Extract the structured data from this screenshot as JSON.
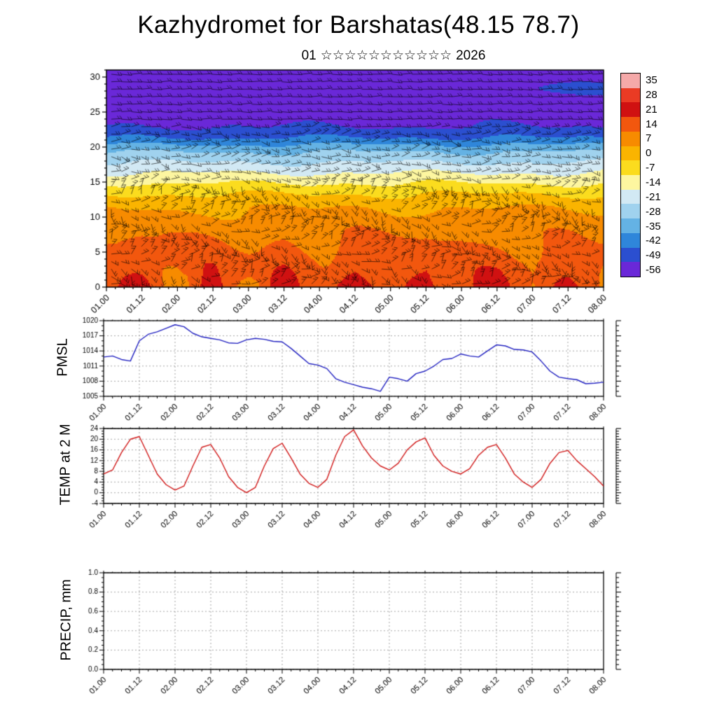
{
  "page": {
    "title": "Kazhydromet for Barshatas(48.15 78.7)",
    "subtitle_prefix": "01",
    "subtitle_stars": "☆☆☆☆☆☆☆☆☆☆☆",
    "subtitle_suffix": "2026"
  },
  "time_axis": {
    "tick_labels": [
      "01.00",
      "01.12",
      "02.00",
      "02.12",
      "03.00",
      "03.12",
      "04.00",
      "04.12",
      "05.00",
      "05.12",
      "06.00",
      "06.12",
      "07.00",
      "07.12",
      "08.00"
    ]
  },
  "chart_data": [
    {
      "id": "temperature_height_cross_section",
      "type": "heatmap",
      "description": "Time-height temperature cross-section with dense black wind barbs; warm (red/orange) near surface with diurnal warm plumes, cold (blue/purple) aloft",
      "ylim": [
        0,
        31
      ],
      "yticks": [
        "0",
        "5",
        "10",
        "15",
        "20",
        "25",
        "30"
      ],
      "colorbar": {
        "ticks": [
          "35",
          "28",
          "21",
          "14",
          "7",
          "0",
          "-7",
          "-14",
          "-21",
          "-28",
          "-35",
          "-42",
          "-49",
          "-56"
        ],
        "colors": [
          "#f5a9a9",
          "#ea3b24",
          "#d01111",
          "#f2570e",
          "#f78b00",
          "#fab400",
          "#fbdc1e",
          "#fdf6a0",
          "#d2e9f4",
          "#a0d2ee",
          "#64b2e4",
          "#2f86da",
          "#2b4fd0",
          "#6a28d8"
        ]
      },
      "temp_profile": {
        "heights": [
          0,
          3.5,
          8,
          11.5,
          13.5,
          15,
          16.5,
          18,
          19.5,
          20.5,
          21.5,
          23,
          25,
          31
        ],
        "temps": [
          16.5,
          14,
          9,
          3,
          -4,
          -11,
          -18,
          -25,
          -32,
          -39,
          -46,
          -52.5,
          -55,
          -57
        ]
      },
      "surface_anomaly_amplitude": 9,
      "wind_barbs": "dense black wind barbs covering entire section, near-horizontal aloft"
    },
    {
      "id": "pmsl",
      "type": "line",
      "label": "PMSL",
      "color": "#2020c0",
      "ylim": [
        1005,
        1020
      ],
      "yticks": [
        "1005",
        "1008",
        "1011",
        "1014",
        "1017",
        "1020"
      ],
      "x_start_day": 1,
      "x_step_days": 0.125,
      "values": [
        1012.8,
        1013,
        1012.3,
        1012,
        1016,
        1017.3,
        1017.8,
        1018.5,
        1019.2,
        1018.8,
        1017.5,
        1016.8,
        1016.5,
        1016.2,
        1015.6,
        1015.5,
        1016.2,
        1016.5,
        1016.3,
        1015.9,
        1015.8,
        1014.5,
        1013,
        1011.5,
        1011.2,
        1010.5,
        1008.5,
        1007.8,
        1007.3,
        1006.8,
        1006.5,
        1006,
        1008.8,
        1008.5,
        1008,
        1009.5,
        1010,
        1011,
        1012.3,
        1012.5,
        1013.4,
        1013,
        1012.8,
        1014,
        1015.2,
        1015,
        1014.3,
        1014.2,
        1013.8,
        1012,
        1010,
        1008.8,
        1008.5,
        1008.3,
        1007.5,
        1007.6,
        1007.8
      ]
    },
    {
      "id": "temp_2m",
      "type": "line",
      "label": "TEMP at 2 M",
      "color": "#d01818",
      "ylim": [
        -4,
        24
      ],
      "yticks": [
        "-4",
        "0",
        "4",
        "8",
        "12",
        "16",
        "20",
        "24"
      ],
      "x_start_day": 1,
      "x_step_days": 0.125,
      "values": [
        7,
        8.5,
        15,
        20,
        21,
        14,
        7,
        3,
        1,
        2.5,
        10,
        17,
        18,
        13,
        6,
        2,
        0,
        2,
        10,
        16.5,
        18.5,
        13,
        7,
        3.5,
        2,
        5,
        14,
        21,
        23.5,
        17.5,
        13,
        10,
        8.5,
        11,
        16,
        19,
        20.5,
        14,
        10,
        8,
        7,
        9,
        14,
        17,
        18,
        13,
        7,
        4,
        2,
        5,
        11,
        15,
        15.8,
        12,
        9,
        6,
        2.5
      ]
    },
    {
      "id": "precip",
      "type": "line",
      "label": "PRECIP, mm",
      "color": "#000000",
      "ylim": [
        0,
        1
      ],
      "yticks": [
        "0.0",
        "0.2",
        "0.4",
        "0.6",
        "0.8",
        "1.0"
      ],
      "x_start_day": 1,
      "x_step_days": 0.125,
      "values": [],
      "note": "no precipitation shown"
    }
  ]
}
